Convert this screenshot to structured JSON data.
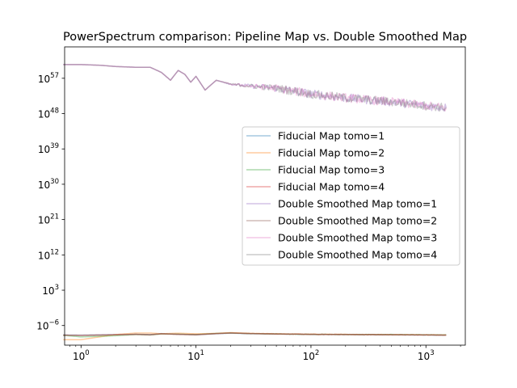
{
  "chart_data": {
    "type": "line",
    "title": "PowerSpectrum comparison: Pipeline Map vs. Double Smoothed Map",
    "xlabel": "",
    "ylabel": "",
    "xscale": "log",
    "yscale": "log",
    "xlim": [
      0.72,
      2200
    ],
    "ylim": [
      1e-11,
      1e+65
    ],
    "x_ticks": [
      {
        "value": 1,
        "base": "10",
        "exp": "0"
      },
      {
        "value": 10,
        "base": "10",
        "exp": "1"
      },
      {
        "value": 100,
        "base": "10",
        "exp": "2"
      },
      {
        "value": 1000,
        "base": "10",
        "exp": "3"
      }
    ],
    "y_ticks": [
      {
        "value": 1e-06,
        "base": "10",
        "exp": "−6"
      },
      {
        "value": 1000.0,
        "base": "10",
        "exp": "3"
      },
      {
        "value": 1000000000000.0,
        "base": "10",
        "exp": "12"
      },
      {
        "value": 1e+21,
        "base": "10",
        "exp": "21"
      },
      {
        "value": 1e+30,
        "base": "10",
        "exp": "30"
      },
      {
        "value": 1e+39,
        "base": "10",
        "exp": "39"
      },
      {
        "value": 1e+48,
        "base": "10",
        "exp": "48"
      },
      {
        "value": 1e+57,
        "base": "10",
        "exp": "57"
      }
    ],
    "grid": false,
    "legend_position": "center-right",
    "series": [
      {
        "name": "Fiducial Map tomo=1",
        "color": "#1f77b4",
        "alpha": 0.4,
        "group": "low",
        "x": [
          0.7,
          1,
          2,
          3,
          4,
          5,
          7,
          10,
          15,
          20,
          30,
          50,
          100,
          200,
          500,
          1000,
          1500
        ],
        "y": [
          -8.4,
          -8.45,
          -8.3,
          -8.2,
          -8.3,
          -8.05,
          -8.2,
          -8.35,
          -8.1,
          -7.95,
          -8.1,
          -8.15,
          -8.25,
          -8.3,
          -8.35,
          -8.4,
          -8.45
        ]
      },
      {
        "name": "Fiducial Map tomo=2",
        "color": "#ff7f0e",
        "alpha": 0.4,
        "group": "low",
        "x": [
          0.7,
          1,
          2,
          3,
          4,
          5,
          7,
          10,
          15,
          20,
          30,
          50,
          100,
          200,
          500,
          1000,
          1500
        ],
        "y": [
          -9.6,
          -9.6,
          -8.3,
          -7.9,
          -7.9,
          -8.1,
          -7.95,
          -8.1,
          -8.0,
          -7.8,
          -8.0,
          -8.1,
          -8.2,
          -8.25,
          -8.3,
          -8.35,
          -8.4
        ]
      },
      {
        "name": "Fiducial Map tomo=3",
        "color": "#2ca02c",
        "alpha": 0.4,
        "group": "low",
        "x": [
          0.7,
          1,
          2,
          3,
          4,
          5,
          7,
          10,
          15,
          20,
          30,
          50,
          100,
          200,
          500,
          1000,
          1500
        ],
        "y": [
          -8.5,
          -8.9,
          -8.6,
          -8.3,
          -8.4,
          -8.15,
          -8.2,
          -8.3,
          -8.0,
          -7.9,
          -8.05,
          -8.15,
          -8.25,
          -8.3,
          -8.3,
          -8.35,
          -8.4
        ]
      },
      {
        "name": "Fiducial Map tomo=4",
        "color": "#d62728",
        "alpha": 0.4,
        "group": "low",
        "x": [
          0.7,
          1,
          2,
          3,
          4,
          5,
          7,
          10,
          15,
          20,
          30,
          50,
          100,
          200,
          500,
          1000,
          1500
        ],
        "y": [
          -8.45,
          -8.5,
          -8.35,
          -8.25,
          -8.35,
          -8.1,
          -8.25,
          -8.35,
          -8.05,
          -7.9,
          -8.05,
          -8.15,
          -8.25,
          -8.3,
          -8.35,
          -8.4,
          -8.45
        ]
      },
      {
        "name": "Double Smoothed Map tomo=1",
        "color": "#9467bd",
        "alpha": 0.4,
        "group": "high",
        "x": [
          0.7,
          1,
          1.5,
          2,
          3,
          4,
          5,
          6,
          7,
          8,
          9,
          10,
          12,
          15,
          20,
          30,
          50,
          100,
          200,
          500,
          1000,
          1500
        ],
        "y": [
          60.5,
          60.5,
          60.3,
          60.0,
          59.8,
          59.8,
          58.5,
          56.5,
          59.0,
          58.0,
          56.0,
          57.5,
          54.0,
          56.5,
          55.5,
          55.0,
          54.5,
          53.0,
          52.0,
          51.0,
          50.0,
          49.5
        ]
      },
      {
        "name": "Double Smoothed Map tomo=2",
        "color": "#8c564b",
        "alpha": 0.4,
        "group": "low",
        "x": [
          0.7,
          1,
          2,
          3,
          4,
          5,
          7,
          10,
          15,
          20,
          30,
          50,
          100,
          200,
          500,
          1000,
          1500
        ],
        "y": [
          -8.45,
          -8.5,
          -8.35,
          -8.25,
          -8.35,
          -8.1,
          -8.25,
          -8.35,
          -8.05,
          -7.9,
          -8.05,
          -8.15,
          -8.25,
          -8.3,
          -8.35,
          -8.4,
          -8.45
        ]
      },
      {
        "name": "Double Smoothed Map tomo=3",
        "color": "#e377c2",
        "alpha": 0.4,
        "group": "high",
        "x": [
          0.7,
          1,
          1.5,
          2,
          3,
          4,
          5,
          6,
          7,
          8,
          9,
          10,
          12,
          15,
          20,
          30,
          50,
          100,
          200,
          500,
          1000,
          1500
        ],
        "y": [
          60.5,
          60.5,
          60.3,
          60.0,
          59.8,
          59.8,
          58.5,
          56.5,
          59.0,
          58.0,
          56.0,
          57.5,
          54.0,
          56.5,
          55.5,
          55.0,
          54.5,
          53.0,
          52.0,
          51.0,
          50.0,
          49.5
        ]
      },
      {
        "name": "Double Smoothed Map tomo=4",
        "color": "#7f7f7f",
        "alpha": 0.4,
        "group": "high",
        "x": [
          0.7,
          1,
          1.5,
          2,
          3,
          4,
          5,
          6,
          7,
          8,
          9,
          10,
          12,
          15,
          20,
          30,
          50,
          100,
          200,
          500,
          1000,
          1500
        ],
        "y": [
          60.5,
          60.5,
          60.3,
          60.0,
          59.8,
          59.8,
          58.5,
          56.5,
          59.0,
          58.0,
          56.0,
          57.5,
          54.0,
          56.5,
          55.5,
          55.0,
          54.5,
          53.0,
          52.0,
          51.0,
          50.0,
          49.5
        ]
      }
    ],
    "y_note": "series y values are given as log10 of the plotted quantity"
  }
}
